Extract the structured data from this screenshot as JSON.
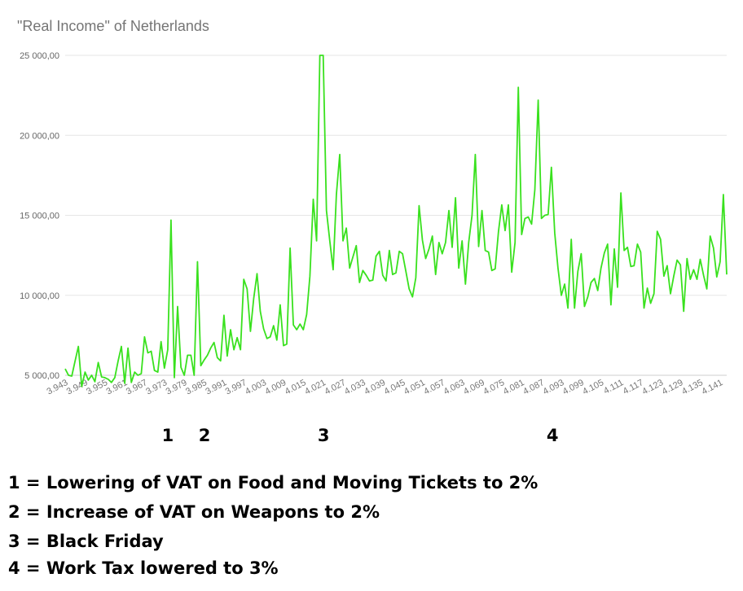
{
  "chart_data": {
    "type": "line",
    "title": "\"Real Income\" of Netherlands",
    "xlabel": "",
    "ylabel": "",
    "x_tick_labels": [
      "3.943",
      "3.949",
      "3.955",
      "3.961",
      "3.967",
      "3.973",
      "3.979",
      "3.985",
      "3.991",
      "3.997",
      "4.003",
      "4.009",
      "4.015",
      "4.021",
      "4.027",
      "4.033",
      "4.039",
      "4.045",
      "4.051",
      "4.057",
      "4.063",
      "4.069",
      "4.075",
      "4.081",
      "4.087",
      "4.093",
      "4.099",
      "4.105",
      "4.111",
      "4.117",
      "4.123",
      "4.129",
      "4.135",
      "4.141"
    ],
    "y_ticks": [
      {
        "value": 5000,
        "label": "5 000,00"
      },
      {
        "value": 10000,
        "label": "10 000,00"
      },
      {
        "value": 15000,
        "label": "15 000,00"
      },
      {
        "value": 20000,
        "label": "20 000,00"
      },
      {
        "value": 25000,
        "label": "25 000,00"
      }
    ],
    "ylim": [
      4500,
      25000
    ],
    "xlim": [
      3943,
      4143
    ],
    "grid": true,
    "line_color": "#39e11e",
    "series": [
      {
        "x_start": 3943,
        "x_step": 1,
        "values": [
          5400,
          5000,
          4950,
          5900,
          6800,
          4300,
          5200,
          4700,
          5000,
          4600,
          5800,
          4900,
          4850,
          4750,
          4550,
          4850,
          5900,
          6800,
          4500,
          6700,
          4550,
          5200,
          5000,
          5100,
          7400,
          6400,
          6500,
          5300,
          5200,
          7100,
          5450,
          6600,
          14700,
          4850,
          9300,
          5500,
          5000,
          6250,
          6250,
          5000,
          12100,
          5600,
          5950,
          6250,
          6700,
          7050,
          6100,
          5900,
          8750,
          6200,
          7850,
          6600,
          7350,
          6600,
          11000,
          10400,
          7750,
          9800,
          11350,
          9000,
          7900,
          7300,
          7400,
          8100,
          7200,
          9400,
          6850,
          6950,
          12950,
          8150,
          7850,
          8200,
          7850,
          8800,
          11200,
          16000,
          13400,
          25000,
          25000,
          15300,
          13400,
          11600,
          16300,
          18800,
          13400,
          14200,
          11700,
          12400,
          13100,
          10800,
          11550,
          11250,
          10900,
          10950,
          12450,
          12750,
          11250,
          10900,
          12800,
          11300,
          11400,
          12750,
          12600,
          11500,
          10400,
          9900,
          11100,
          15600,
          13450,
          12300,
          12900,
          13700,
          11300,
          13300,
          12600,
          13300,
          15300,
          13000,
          16100,
          11700,
          13400,
          10700,
          13300,
          15000,
          18800,
          13050,
          15300,
          12800,
          12700,
          11550,
          11650,
          14000,
          15650,
          14050,
          15650,
          11450,
          13300,
          23000,
          13800,
          14800,
          14900,
          14450,
          16600,
          22200,
          14800,
          15000,
          15050,
          18000,
          13900,
          11700,
          10000,
          10700,
          9200,
          13500,
          9200,
          11500,
          12600,
          9300,
          9900,
          10800,
          11050,
          10300,
          11700,
          12650,
          13200,
          9400,
          12900,
          10500,
          16400,
          12800,
          13000,
          11800,
          11850,
          13200,
          12700,
          9200,
          10450,
          9500,
          10100,
          14000,
          13500,
          11200,
          11850,
          10100,
          11200,
          12200,
          11900,
          9000,
          12300,
          11000,
          11600,
          11000,
          12250,
          11250,
          10400,
          13700,
          12950,
          11150,
          12100,
          16300,
          11300
        ]
      }
    ]
  },
  "markers": [
    {
      "label": "1",
      "x": 3973.7
    },
    {
      "label": "2",
      "x": 3984.8
    },
    {
      "label": "3",
      "x": 4020.8
    },
    {
      "label": "4",
      "x": 4090
    }
  ],
  "notes": [
    "1 = Lowering of VAT on Food and Moving Tickets to 2%",
    "2 = Increase of VAT on Weapons to 2%",
    "3 = Black Friday",
    "4 = Work Tax lowered to 3%"
  ]
}
